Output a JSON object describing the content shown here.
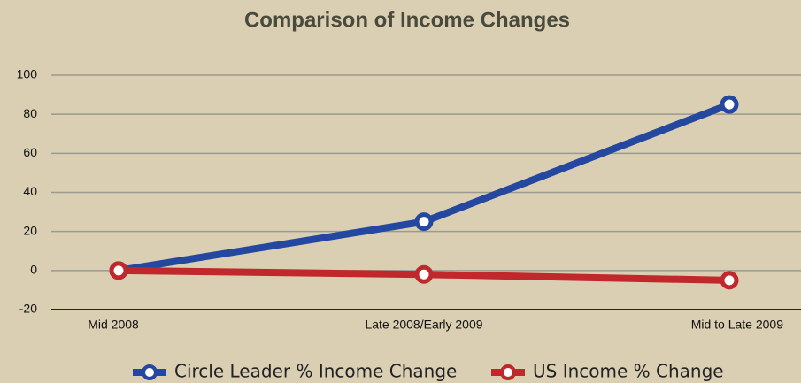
{
  "chart_data": {
    "type": "line",
    "title": "Comparison of Income Changes",
    "categories": [
      "Mid 2008",
      "Late 2008/Early 2009",
      "Mid to Late 2009"
    ],
    "series": [
      {
        "name": "Circle Leader % Income Change",
        "color": "#2447a0",
        "values": [
          0,
          25,
          85
        ]
      },
      {
        "name": "US Income % Change",
        "color": "#c0282b",
        "values": [
          0,
          -2,
          -5
        ]
      }
    ],
    "ylim": [
      -20,
      100
    ],
    "yticks": [
      -20,
      0,
      20,
      40,
      60,
      80,
      100
    ],
    "grid": true,
    "legend": "bottom"
  }
}
